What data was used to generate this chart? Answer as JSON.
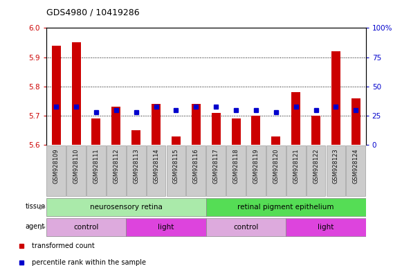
{
  "title": "GDS4980 / 10419286",
  "samples": [
    "GSM928109",
    "GSM928110",
    "GSM928111",
    "GSM928112",
    "GSM928113",
    "GSM928114",
    "GSM928115",
    "GSM928116",
    "GSM928117",
    "GSM928118",
    "GSM928119",
    "GSM928120",
    "GSM928121",
    "GSM928122",
    "GSM928123",
    "GSM928124"
  ],
  "transformed_count": [
    5.94,
    5.95,
    5.69,
    5.73,
    5.65,
    5.74,
    5.63,
    5.74,
    5.71,
    5.69,
    5.7,
    5.63,
    5.78,
    5.7,
    5.92,
    5.76
  ],
  "percentile_rank": [
    33,
    33,
    28,
    30,
    28,
    33,
    30,
    33,
    33,
    30,
    30,
    28,
    33,
    30,
    33,
    30
  ],
  "ylim_left": [
    5.6,
    6.0
  ],
  "ylim_right": [
    0,
    100
  ],
  "yticks_left": [
    5.6,
    5.7,
    5.8,
    5.9,
    6.0
  ],
  "yticks_right": [
    0,
    25,
    50,
    75,
    100
  ],
  "bar_color": "#cc0000",
  "dot_color": "#0000cc",
  "bar_bottom": 5.6,
  "tissue_groups": [
    {
      "label": "neurosensory retina",
      "start": 0,
      "end": 8,
      "color": "#aaeaaa"
    },
    {
      "label": "retinal pigment epithelium",
      "start": 8,
      "end": 16,
      "color": "#55dd55"
    }
  ],
  "agent_groups": [
    {
      "label": "control",
      "start": 0,
      "end": 4,
      "color": "#ddaadd"
    },
    {
      "label": "light",
      "start": 4,
      "end": 8,
      "color": "#dd44dd"
    },
    {
      "label": "control",
      "start": 8,
      "end": 12,
      "color": "#ddaadd"
    },
    {
      "label": "light",
      "start": 12,
      "end": 16,
      "color": "#dd44dd"
    }
  ],
  "legend_items": [
    {
      "label": "transformed count",
      "color": "#cc0000"
    },
    {
      "label": "percentile rank within the sample",
      "color": "#0000cc"
    }
  ],
  "bg_color": "#ffffff",
  "tick_label_color_left": "#cc0000",
  "tick_label_color_right": "#0000cc",
  "xticklabel_bg": "#cccccc"
}
